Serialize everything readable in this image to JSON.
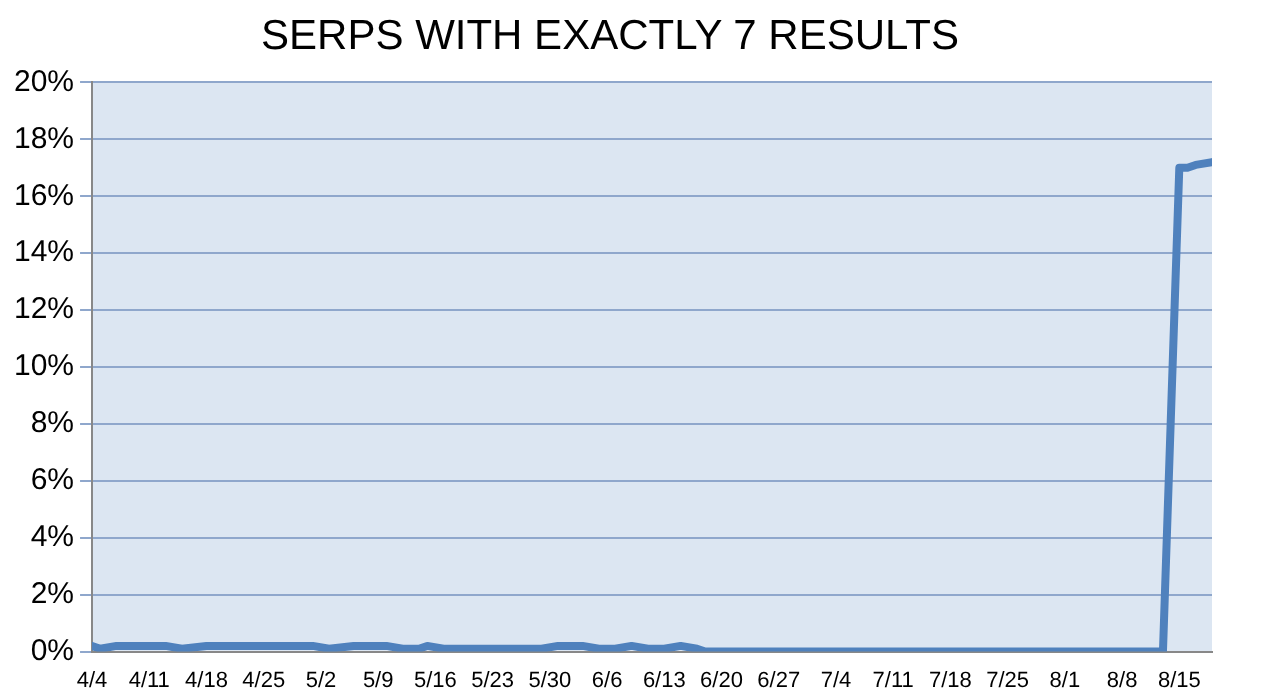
{
  "chart_data": {
    "type": "line",
    "title": "SERPS WITH EXACTLY 7 RESULTS",
    "x": [
      "--04-04",
      "--04-05",
      "--04-07",
      "--04-11",
      "--04-13",
      "--04-15",
      "--04-18",
      "--04-22",
      "--04-25",
      "--04-29",
      "--05-01",
      "--05-03",
      "--05-06",
      "--05-10",
      "--05-12",
      "--05-14",
      "--05-15",
      "--05-17",
      "--05-18",
      "--05-20",
      "--05-25",
      "--05-29",
      "--05-31",
      "--06-03",
      "--06-05",
      "--06-07",
      "--06-09",
      "--06-11",
      "--06-13",
      "--06-15",
      "--06-17",
      "--06-18",
      "--06-25",
      "--07-05",
      "--07-15",
      "--07-25",
      "--08-04",
      "--08-13",
      "--08-15",
      "--08-16",
      "--08-17",
      "--08-19"
    ],
    "series": [
      {
        "color": "#4f81bd",
        "values": [
          0.2,
          0.1,
          0.2,
          0.2,
          0.2,
          0.1,
          0.2,
          0.2,
          0.2,
          0.2,
          0.2,
          0.1,
          0.2,
          0.2,
          0.1,
          0.1,
          0.2,
          0.1,
          0.1,
          0.1,
          0.1,
          0.1,
          0.2,
          0.2,
          0.1,
          0.1,
          0.2,
          0.1,
          0.1,
          0.2,
          0.1,
          0,
          0,
          0,
          0,
          0,
          0,
          0,
          17.0,
          17.0,
          17.1,
          17.2
        ]
      }
    ],
    "xlim": [
      "--04-04",
      "--08-19"
    ],
    "xticks": [
      {
        "value": "--04-04",
        "label": "4/4"
      },
      {
        "value": "--04-11",
        "label": "4/11"
      },
      {
        "value": "--04-18",
        "label": "4/18"
      },
      {
        "value": "--04-25",
        "label": "4/25"
      },
      {
        "value": "--05-02",
        "label": "5/2"
      },
      {
        "value": "--05-09",
        "label": "5/9"
      },
      {
        "value": "--05-16",
        "label": "5/16"
      },
      {
        "value": "--05-23",
        "label": "5/23"
      },
      {
        "value": "--05-30",
        "label": "5/30"
      },
      {
        "value": "--06-06",
        "label": "6/6"
      },
      {
        "value": "--06-13",
        "label": "6/13"
      },
      {
        "value": "--06-20",
        "label": "6/20"
      },
      {
        "value": "--06-27",
        "label": "6/27"
      },
      {
        "value": "--07-04",
        "label": "7/4"
      },
      {
        "value": "--07-11",
        "label": "7/11"
      },
      {
        "value": "--07-18",
        "label": "7/18"
      },
      {
        "value": "--07-25",
        "label": "7/25"
      },
      {
        "value": "--08-01",
        "label": "8/1"
      },
      {
        "value": "--08-08",
        "label": "8/8"
      },
      {
        "value": "--08-15",
        "label": "8/15"
      }
    ],
    "ylim": [
      0,
      20
    ],
    "yticks": [
      {
        "value": 0,
        "label": "0%"
      },
      {
        "value": 2,
        "label": "2%"
      },
      {
        "value": 4,
        "label": "4%"
      },
      {
        "value": 6,
        "label": "6%"
      },
      {
        "value": 8,
        "label": "8%"
      },
      {
        "value": 10,
        "label": "10%"
      },
      {
        "value": 12,
        "label": "12%"
      },
      {
        "value": 14,
        "label": "14%"
      },
      {
        "value": 16,
        "label": "16%"
      },
      {
        "value": 18,
        "label": "18%"
      },
      {
        "value": 20,
        "label": "20%"
      }
    ],
    "grid": "y",
    "marker": "none",
    "line_style": "solid",
    "legend": false
  }
}
